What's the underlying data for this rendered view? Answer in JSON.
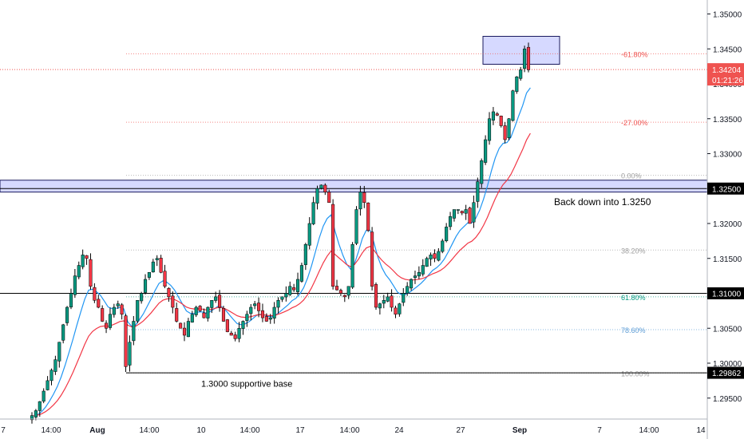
{
  "chart_data": {
    "type": "candlestick",
    "y_range": [
      1.292,
      1.352
    ],
    "price_axis_ticks": [
      "1.35000",
      "1.34500",
      "1.34000",
      "1.33500",
      "1.33000",
      "1.32000",
      "1.31500",
      "1.30500",
      "1.30000",
      "1.29500"
    ],
    "time_axis_labels": [
      "7",
      "14:00",
      "Aug",
      "14:00",
      "10",
      "14:00",
      "17",
      "14:00",
      "24",
      "27",
      "Sep",
      "7",
      "14:00",
      "14"
    ],
    "last_price": {
      "value": "1.34204",
      "countdown": "01:21:26",
      "color": "#ef5350"
    },
    "level_badges": [
      {
        "label": "1.32500",
        "value": 1.325
      },
      {
        "label": "1.31000",
        "value": 1.31
      },
      {
        "label": "1.29862",
        "value": 1.29862
      }
    ],
    "horizontal_lines": [
      {
        "value": 1.325,
        "color": "#000000"
      },
      {
        "value": 1.31,
        "color": "#000000"
      },
      {
        "value": 1.29862,
        "color": "#000000"
      }
    ],
    "fibonacci_levels": [
      {
        "label": "-61.80%",
        "value": 1.3443,
        "color": "#ef5350"
      },
      {
        "label": "-27.00%",
        "value": 1.3345,
        "color": "#ef5350"
      },
      {
        "label": "0.00%",
        "value": 1.3269,
        "color": "#9e9e9e"
      },
      {
        "label": "38.20%",
        "value": 1.3162,
        "color": "#9e9e9e"
      },
      {
        "label": "61.80%",
        "value": 1.3095,
        "color": "#089981"
      },
      {
        "label": "78.60%",
        "value": 1.3048,
        "color": "#5b9bd5"
      },
      {
        "label": "100.00%",
        "value": 1.2986,
        "color": "#9e9e9e"
      }
    ],
    "annotations": [
      {
        "text": "Back down into 1.3250",
        "price": 1.324
      },
      {
        "text": "1.3000 supportive base",
        "price": 1.2979
      }
    ],
    "zones": [
      {
        "name": "resistance-band",
        "from": 1.3245,
        "to": 1.3262,
        "color": "#d6d9ff"
      },
      {
        "name": "target-box",
        "from": 1.3428,
        "to": 1.3468,
        "color": "#d6d9ff"
      }
    ],
    "colors": {
      "up": "#089981",
      "down": "#f23645",
      "ema_fast": "#2196f3",
      "ema_slow": "#f23645"
    },
    "candles_close": [
      1.2925,
      1.2932,
      1.2945,
      1.296,
      1.2975,
      1.299,
      1.3005,
      1.303,
      1.3055,
      1.308,
      1.31,
      1.3125,
      1.314,
      1.3155,
      1.315,
      1.311,
      1.309,
      1.308,
      1.306,
      1.305,
      1.307,
      1.308,
      1.3085,
      1.307,
      1.2995,
      1.303,
      1.306,
      1.309,
      1.31,
      1.312,
      1.313,
      1.3145,
      1.315,
      1.313,
      1.311,
      1.3095,
      1.308,
      1.306,
      1.305,
      1.304,
      1.306,
      1.307,
      1.308,
      1.3075,
      1.3065,
      1.308,
      1.309,
      1.3095,
      1.308,
      1.306,
      1.3045,
      1.304,
      1.3035,
      1.305,
      1.306,
      1.307,
      1.308,
      1.3085,
      1.3075,
      1.3065,
      1.306,
      1.3065,
      1.308,
      1.309,
      1.3095,
      1.31,
      1.311,
      1.3105,
      1.312,
      1.314,
      1.317,
      1.32,
      1.323,
      1.325,
      1.3255,
      1.3245,
      1.323,
      1.311,
      1.3105,
      1.31,
      1.3095,
      1.311,
      1.317,
      1.322,
      1.3245,
      1.323,
      1.319,
      1.311,
      1.308,
      1.3085,
      1.309,
      1.3095,
      1.308,
      1.307,
      1.3085,
      1.31,
      1.311,
      1.312,
      1.3125,
      1.313,
      1.314,
      1.315,
      1.3155,
      1.315,
      1.316,
      1.3175,
      1.3195,
      1.321,
      1.322,
      1.322,
      1.3215,
      1.322,
      1.32,
      1.323,
      1.326,
      1.329,
      1.332,
      1.335,
      1.336,
      1.3355,
      1.334,
      1.332,
      1.335,
      1.339,
      1.341,
      1.342,
      1.345,
      1.342
    ]
  }
}
